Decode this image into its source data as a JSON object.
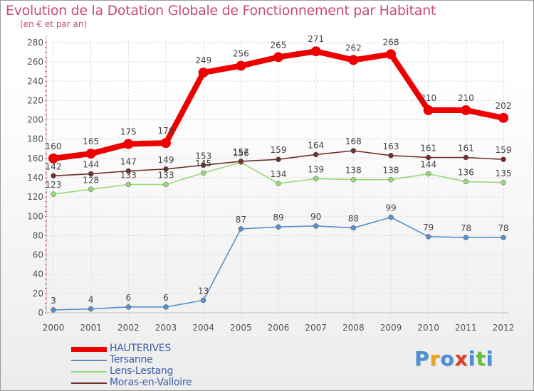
{
  "chart_data": {
    "type": "line",
    "title": "Evolution de la Dotation Globale de Fonctionnement par Habitant",
    "subtitle": "(en € et par an)",
    "xlabel": "",
    "ylabel": "",
    "ylim": [
      0,
      280
    ],
    "yticks": [
      0,
      20,
      40,
      60,
      80,
      100,
      120,
      140,
      160,
      180,
      200,
      220,
      240,
      260,
      280
    ],
    "categories": [
      "2000",
      "2001",
      "2002",
      "2003",
      "2004",
      "2005",
      "2006",
      "2007",
      "2008",
      "2009",
      "2010",
      "2011",
      "2012"
    ],
    "grid": true,
    "legend": "bottom-left",
    "series": [
      {
        "name": "Tersanne",
        "color": "#5a8fc8",
        "values": [
          3,
          4,
          6,
          6,
          13,
          87,
          89,
          90,
          88,
          99,
          79,
          78,
          78
        ]
      },
      {
        "name": "Lens-Lestang",
        "color": "#99d87a",
        "values": [
          123,
          128,
          133,
          133,
          145,
          156,
          134,
          139,
          138,
          138,
          144,
          136,
          135
        ]
      },
      {
        "name": "Moras-en-Valloire",
        "color": "#6e3030",
        "values": [
          142,
          144,
          147,
          149,
          153,
          157,
          159,
          164,
          168,
          163,
          161,
          161,
          159
        ]
      },
      {
        "name": "HAUTERIVES",
        "color": "#ee0000",
        "values": [
          160,
          165,
          175,
          176,
          249,
          256,
          265,
          271,
          262,
          268,
          210,
          210,
          202
        ]
      }
    ],
    "labels": [
      [
        "3",
        "4",
        "6",
        "6",
        "13",
        "87",
        "89",
        "90",
        "88",
        "99",
        "79",
        "78",
        "78"
      ],
      [
        "123",
        "128",
        "133",
        "133",
        "145",
        "156",
        "134",
        "139",
        "138",
        "138",
        "144",
        "136",
        "135"
      ],
      [
        "142",
        "144",
        "147",
        "149",
        "153",
        "157",
        "159",
        "164",
        "168",
        "163",
        "161",
        "161",
        "159"
      ],
      [
        "160",
        "165",
        "175",
        "176",
        "249",
        "256",
        "265",
        "271",
        "262",
        "268",
        "210",
        "210",
        "202"
      ]
    ]
  },
  "legend_items": [
    {
      "label": "HAUTERIVES",
      "color": "#ee0000"
    },
    {
      "label": "Tersanne",
      "color": "#5a8fc8"
    },
    {
      "label": "Lens-Lestang",
      "color": "#99d87a"
    },
    {
      "label": "Moras-en-Valloire",
      "color": "#6e3030"
    }
  ],
  "logo": {
    "letters": [
      "P",
      "r",
      "o",
      "x",
      "i",
      "t",
      "i"
    ],
    "colors": [
      "#4a8fd8",
      "#f0a020",
      "#4a8fd8",
      "#e03c28",
      "#4a8fd8",
      "#68c040",
      "#4a8fd8"
    ]
  }
}
